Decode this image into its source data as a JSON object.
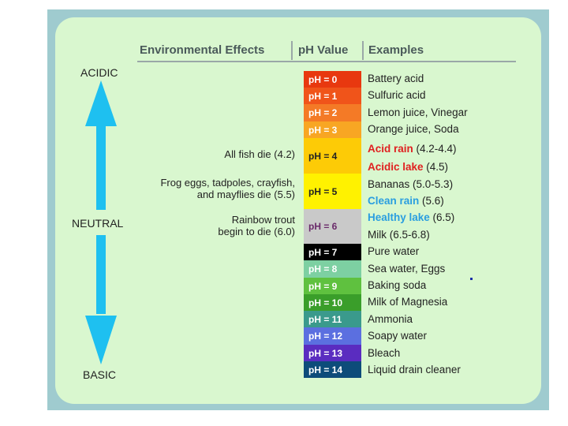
{
  "headers": {
    "effects": "Environmental Effects",
    "ph": "pH Value",
    "examples": "Examples"
  },
  "scale_labels": {
    "acidic": "ACIDIC",
    "neutral": "NEUTRAL",
    "basic": "BASIC"
  },
  "effects": [
    {
      "text": "All fish die (4.2)"
    },
    {
      "line1": "Frog eggs, tadpoles, crayfish,",
      "line2": "and mayflies die (5.5)"
    },
    {
      "line1": "Rainbow trout",
      "line2": "begin to die (6.0)"
    }
  ],
  "ph_values": [
    {
      "label": "pH = 0",
      "color": "#e8380f",
      "text_color": "#ffffff"
    },
    {
      "label": "pH = 1",
      "color": "#f0541a",
      "text_color": "#ffffff"
    },
    {
      "label": "pH = 2",
      "color": "#f47a26",
      "text_color": "#ffffff"
    },
    {
      "label": "pH = 3",
      "color": "#f8a623",
      "text_color": "#ffffff"
    },
    {
      "label": "pH = 4",
      "color": "#fdcb06",
      "text_color": "#222222"
    },
    {
      "label": "pH = 5",
      "color": "#fff200",
      "text_color": "#222222"
    },
    {
      "label": "pH = 6",
      "color": "#c9c9c9",
      "text_color": "#6a2a6a"
    },
    {
      "label": "pH = 7",
      "color": "#000000",
      "text_color": "#ffffff"
    },
    {
      "label": "pH = 8",
      "color": "#7dd0a2",
      "text_color": "#ffffff"
    },
    {
      "label": "pH = 9",
      "color": "#5fc13f",
      "text_color": "#ffffff"
    },
    {
      "label": "pH = 10",
      "color": "#3a9e2a",
      "text_color": "#ffffff"
    },
    {
      "label": "pH = 11",
      "color": "#3a9a8c",
      "text_color": "#ffffff"
    },
    {
      "label": "pH = 12",
      "color": "#5b6fe0",
      "text_color": "#ffffff"
    },
    {
      "label": "pH = 13",
      "color": "#5a2cc0",
      "text_color": "#ffffff"
    },
    {
      "label": "pH = 14",
      "color": "#0d4c7a",
      "text_color": "#ffffff"
    }
  ],
  "examples": [
    {
      "text": "Battery acid"
    },
    {
      "text": "Sulfuric acid"
    },
    {
      "text": "Lemon juice, Vinegar"
    },
    {
      "text": "Orange juice, Soda"
    },
    {
      "highlight": "Acid rain",
      "rest": " (4.2-4.4)",
      "color": "#e02020"
    },
    {
      "highlight": "Acidic lake",
      "rest": " (4.5)",
      "color": "#e02020"
    },
    {
      "text": "Bananas (5.0-5.3)"
    },
    {
      "highlight": "Clean rain",
      "rest": " (5.6)",
      "color": "#2a9ee0"
    },
    {
      "highlight": "Healthy lake",
      "rest": " (6.5)",
      "color": "#2a9ee0"
    },
    {
      "text": "Milk (6.5-6.8)"
    },
    {
      "text": "Pure water"
    },
    {
      "text": "Sea water, Eggs"
    },
    {
      "text": "Baking soda"
    },
    {
      "text": "Milk of Magnesia"
    },
    {
      "text": "Ammonia"
    },
    {
      "text": "Soapy water"
    },
    {
      "text": "Bleach"
    },
    {
      "text": "Liquid drain cleaner"
    }
  ],
  "colors": {
    "frame": "#9fcbcf",
    "panel": "#d9f7cf",
    "arrow": "#1ec0f0"
  }
}
